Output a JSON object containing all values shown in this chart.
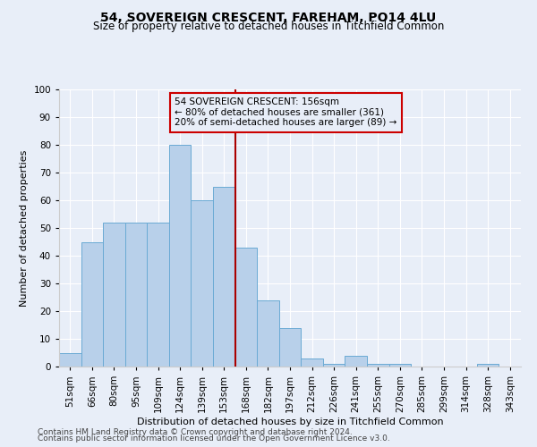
{
  "title1": "54, SOVEREIGN CRESCENT, FAREHAM, PO14 4LU",
  "title2": "Size of property relative to detached houses in Titchfield Common",
  "xlabel": "Distribution of detached houses by size in Titchfield Common",
  "ylabel": "Number of detached properties",
  "footnote1": "Contains HM Land Registry data © Crown copyright and database right 2024.",
  "footnote2": "Contains public sector information licensed under the Open Government Licence v3.0.",
  "bar_labels": [
    "51sqm",
    "66sqm",
    "80sqm",
    "95sqm",
    "109sqm",
    "124sqm",
    "139sqm",
    "153sqm",
    "168sqm",
    "182sqm",
    "197sqm",
    "212sqm",
    "226sqm",
    "241sqm",
    "255sqm",
    "270sqm",
    "285sqm",
    "299sqm",
    "314sqm",
    "328sqm",
    "343sqm"
  ],
  "bar_values": [
    5,
    45,
    52,
    52,
    52,
    80,
    60,
    65,
    43,
    24,
    14,
    3,
    1,
    4,
    1,
    1,
    0,
    0,
    0,
    1,
    0
  ],
  "bar_color": "#b8d0ea",
  "bar_edge_color": "#6aaad4",
  "vline_color": "#aa0000",
  "annotation_title": "54 SOVEREIGN CRESCENT: 156sqm",
  "annotation_line1": "← 80% of detached houses are smaller (361)",
  "annotation_line2": "20% of semi-detached houses are larger (89) →",
  "annotation_box_color": "#cc0000",
  "ylim": [
    0,
    100
  ],
  "yticks": [
    0,
    10,
    20,
    30,
    40,
    50,
    60,
    70,
    80,
    90,
    100
  ],
  "background_color": "#e8eef8",
  "grid_color": "#ffffff",
  "title1_fontsize": 10,
  "title2_fontsize": 8.5,
  "ylabel_fontsize": 8,
  "xlabel_fontsize": 8,
  "tick_fontsize": 7.5,
  "footnote_fontsize": 6.5
}
